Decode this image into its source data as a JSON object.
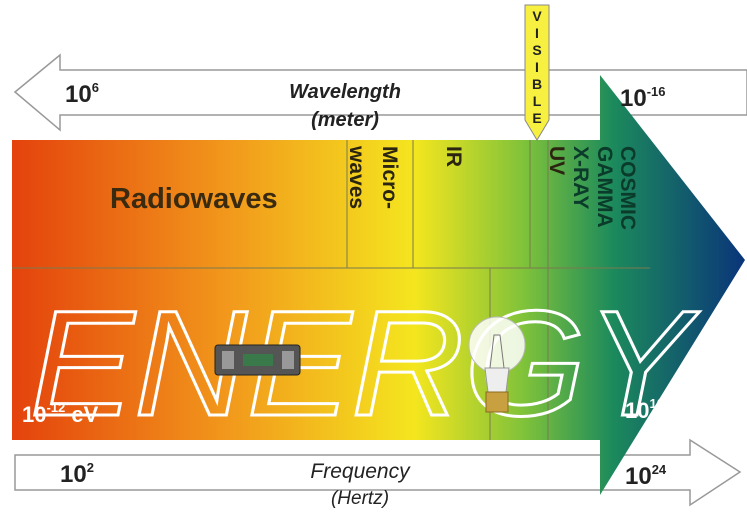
{
  "wavelength": {
    "left": {
      "base": "10",
      "exp": "6"
    },
    "title": "Wavelength",
    "unit": "(meter)",
    "right": {
      "base": "10",
      "exp": "-16"
    }
  },
  "visible": "VISIBLE",
  "bands": {
    "radiowaves": "Radiowaves",
    "microwaves": [
      "Micro-",
      "waves"
    ],
    "ir": "IR",
    "uv": "UV",
    "xray": "X-RAY",
    "gamma": "GAMMA",
    "cosmic": "COSMIC"
  },
  "energy": {
    "title": "ENERGY",
    "left": {
      "base": "10",
      "exp": "-12",
      "unit": " eV"
    },
    "right": {
      "base": "10",
      "exp": "10"
    }
  },
  "frequency": {
    "left": {
      "base": "10",
      "exp": "2"
    },
    "title": "Frequency",
    "unit": "(Hertz)",
    "right": {
      "base": "10",
      "exp": "24"
    }
  }
}
